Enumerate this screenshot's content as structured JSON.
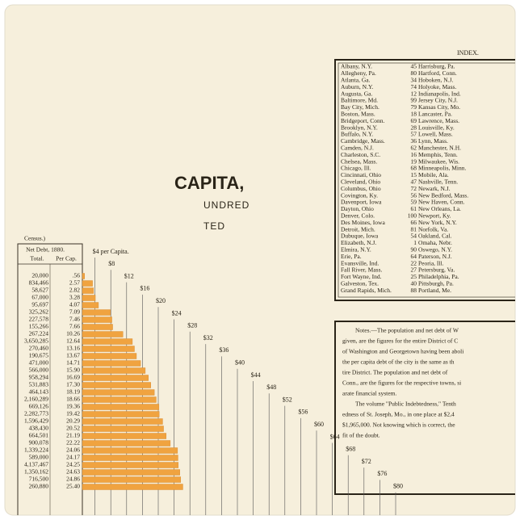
{
  "title": "CAPITA,",
  "subtitle_lines": [
    "UNDRED",
    "TED"
  ],
  "census_note": "Census.)",
  "table": {
    "header": "Net Debt, 1880.",
    "columns": [
      "Total.",
      "Per Cap."
    ],
    "totals": [
      "20,000",
      "834,466",
      "58,627",
      "67,000",
      "95,697",
      "325,262",
      "227,578",
      "155,266",
      "267,224",
      "3,650,285",
      "270,460",
      "190,675",
      "471,000",
      "566,000",
      "958,294",
      "531,883",
      "464,143",
      "2,160,289",
      "669,126",
      "2,282,773",
      "1,596,429",
      "438,430",
      "664,501",
      "900,078",
      "1,339,224",
      "589,000",
      "4,137,467",
      "1,350,162",
      "716,500",
      "260,880"
    ],
    "per_capita": {
      "values": [
        0.56,
        2.57,
        2.82,
        3.28,
        4.07,
        7.09,
        7.46,
        7.66,
        10.26,
        12.64,
        13.16,
        13.67,
        14.71,
        15.9,
        16.69,
        17.3,
        18.19,
        18.66,
        19.36,
        19.42,
        20.29,
        20.52,
        21.19,
        22.22,
        24.06,
        24.17,
        24.25,
        24.63,
        24.86,
        25.4
      ],
      "value_labels": [
        ".56",
        "2.57",
        "2.82",
        "3.28",
        "4.07",
        "7.09",
        "7.46",
        "7.66",
        "10.26",
        "12.64",
        "13.16",
        "13.67",
        "14.71",
        "15.90",
        "16.69",
        "17.30",
        "18.19",
        "18.66",
        "19.36",
        "19.42",
        "20.29",
        "20.52",
        "21.19",
        "22.22",
        "24.06",
        "24.17",
        "24.25",
        "24.63",
        "24.86",
        "25.40"
      ]
    }
  },
  "scale": {
    "ticks": [
      {
        "value": 4,
        "label": "$4 per Capita."
      },
      {
        "value": 8,
        "label": "$8"
      },
      {
        "value": 12,
        "label": "$12"
      },
      {
        "value": 16,
        "label": "$16"
      },
      {
        "value": 20,
        "label": "$20"
      },
      {
        "value": 24,
        "label": "$24"
      },
      {
        "value": 28,
        "label": "$28"
      },
      {
        "value": 32,
        "label": "$32"
      },
      {
        "value": 36,
        "label": "$36"
      },
      {
        "value": 40,
        "label": "$40"
      },
      {
        "value": 44,
        "label": "$44"
      },
      {
        "value": 48,
        "label": "$48"
      },
      {
        "value": 52,
        "label": "$52"
      },
      {
        "value": 56,
        "label": "$56"
      },
      {
        "value": 60,
        "label": "$60"
      },
      {
        "value": 64,
        "label": "$64"
      },
      {
        "value": 68,
        "label": "$68"
      },
      {
        "value": 72,
        "label": "$72"
      },
      {
        "value": 76,
        "label": "$76"
      },
      {
        "value": 80,
        "label": "$80"
      }
    ]
  },
  "index": {
    "title": "INDEX.",
    "rows": [
      [
        "Albany, N.Y.",
        "45",
        "Harrisburg, Pa."
      ],
      [
        "Allegheny, Pa.",
        "80",
        "Hartford, Conn."
      ],
      [
        "Atlanta, Ga.",
        "34",
        "Hoboken, N.J."
      ],
      [
        "Auburn, N.Y.",
        "74",
        "Holyoke, Mass."
      ],
      [
        "Augusta, Ga.",
        "12",
        "Indianapolis, Ind."
      ],
      [
        "Baltimore, Md.",
        "99",
        "Jersey City, N.J."
      ],
      [
        "Bay City, Mich.",
        "79",
        "Kansas City, Mo."
      ],
      [
        "Boston, Mass.",
        "18",
        "Lancaster, Pa."
      ],
      [
        "Bridgeport, Conn.",
        "69",
        "Lawrence, Mass."
      ],
      [
        "Brooklyn, N.Y.",
        "28",
        "Louisville, Ky."
      ],
      [
        "Buffalo, N.Y.",
        "57",
        "Lowell, Mass."
      ],
      [
        "Cambridge, Mass.",
        "36",
        "Lynn, Mass."
      ],
      [
        "Camden, N.J.",
        "62",
        "Manchester, N.H."
      ],
      [
        "Charleston, S.C.",
        "16",
        "Memphis, Tenn."
      ],
      [
        "Chelsea, Mass.",
        "19",
        "Milwaukee, Wis."
      ],
      [
        "Chicago, Ill.",
        "68",
        "Minneapolis, Minn."
      ],
      [
        "Cincinnati, Ohio",
        "15",
        "Mobile, Ala."
      ],
      [
        "Cleveland, Ohio",
        "47",
        "Nashville, Tenn."
      ],
      [
        "Columbus, Ohio",
        "72",
        "Newark, N.J."
      ],
      [
        "Covington, Ky.",
        "56",
        "New Bedford, Mass."
      ],
      [
        "Davenport, Iowa",
        "59",
        "New Haven, Conn."
      ],
      [
        "Dayton, Ohio",
        "61",
        "New Orleans, La."
      ],
      [
        "Denver, Colo.",
        "100",
        "Newport, Ky."
      ],
      [
        "Des Moines, Iowa",
        "66",
        "New York, N.Y."
      ],
      [
        "Detroit, Mich.",
        "81",
        "Norfolk, Va."
      ],
      [
        "Dubuque, Iowa",
        "54",
        "Oakland, Cal."
      ],
      [
        "Elizabeth, N.J.",
        "1",
        "Omaha, Nebr."
      ],
      [
        "Elmira, N.Y.",
        "90",
        "Oswego, N.Y."
      ],
      [
        "Erie, Pa.",
        "64",
        "Paterson, N.J."
      ],
      [
        "Evansville, Ind.",
        "22",
        "Peoria, Ill."
      ],
      [
        "Fall River, Mass.",
        "27",
        "Petersburg, Va."
      ],
      [
        "Fort Wayne, Ind.",
        "25",
        "Philadelphia, Pa."
      ],
      [
        "Galveston, Tex.",
        "40",
        "Pittsburgh, Pa."
      ],
      [
        "Grand Rapids, Mich.",
        "88",
        "Portland, Me."
      ]
    ]
  },
  "notes": {
    "lines": [
      "Notes.—The population and net debt of W",
      "given, are the figures for the entire District of C",
      "of Washington and Georgetown having been aboli",
      "the per capita debt of the city is the same as th",
      "tire District.  The population and net debt of",
      "Conn., are the figures for the respective towns, si",
      "arate financial system.",
      "The volume \"Public Indebtedness,\" Tenth",
      "edness of St. Joseph, Mo., in one place at $2,4",
      "$1,965,000.  Not knowing which is correct, the",
      "fit of the doubt."
    ]
  }
}
